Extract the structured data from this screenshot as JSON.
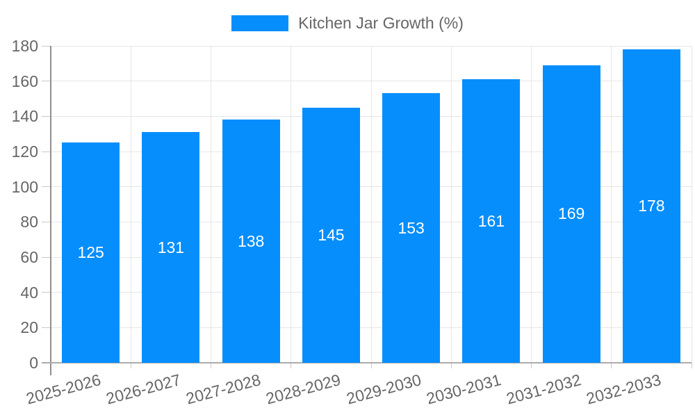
{
  "chart_data": {
    "type": "bar",
    "title": "Kitchen Jar Growth (%)",
    "categories": [
      "2025-2026",
      "2026-2027",
      "2027-2028",
      "2028-2029",
      "2029-2030",
      "2030-2031",
      "2031-2032",
      "2032-2033"
    ],
    "values": [
      125,
      131,
      138,
      145,
      153,
      161,
      169,
      178
    ],
    "series": [
      {
        "name": "Kitchen Jar Growth (%)",
        "values": [
          125,
          131,
          138,
          145,
          153,
          161,
          169,
          178
        ]
      }
    ],
    "xlabel": "",
    "ylabel": "",
    "ylim": [
      0,
      180
    ],
    "ytick_step": 20,
    "yticks": [
      0,
      20,
      40,
      60,
      80,
      100,
      120,
      140,
      160,
      180
    ],
    "grid": true,
    "value_labels_inside_bars": true,
    "legend_position": "top-center",
    "x_label_rotation_deg": -15,
    "colors": {
      "bar": "#058EFC",
      "grid": "#E6E6E6",
      "tick_mark": "#C9C9C9",
      "axis_line": "#8E8E8E",
      "baseline": "#ABABAB",
      "tick_text": "#666666",
      "legend_text": "#666666",
      "value_text": "#FFFFFF",
      "background": "#FFFFFF"
    }
  }
}
